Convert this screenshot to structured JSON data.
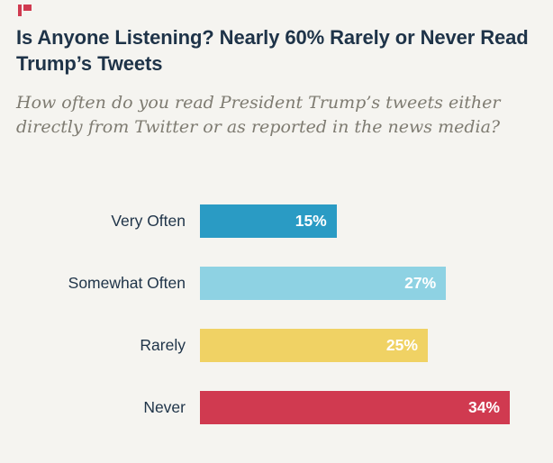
{
  "page": {
    "background": "#f5f4f0",
    "text_color": "#1e3348"
  },
  "logo": {
    "color": "#d03a50"
  },
  "header": {
    "title": "Is Anyone Listening? Nearly 60% Rarely or Never Read Trump’s Tweets",
    "subtitle": "How often do you read President Trump’s tweets either directly from Twitter or as reported in the news media?"
  },
  "chart_data": {
    "type": "bar",
    "orientation": "horizontal",
    "title": "Is Anyone Listening? Nearly 60% Rarely or Never Read Trump’s Tweets",
    "subtitle": "How often do you read President Trump’s tweets either directly from Twitter or as reported in the news media?",
    "categories": [
      "Very Often",
      "Somewhat Often",
      "Rarely",
      "Never"
    ],
    "values": [
      15,
      27,
      25,
      34
    ],
    "value_labels": [
      "15%",
      "27%",
      "25%",
      "34%"
    ],
    "bar_colors": [
      "#2a9bc4",
      "#8ed2e3",
      "#f0d264",
      "#d03a50"
    ],
    "value_label_color": "#ffffff",
    "category_label_color": "#1e3348",
    "xlim": [
      0,
      34
    ],
    "grid": false,
    "legend": "none"
  }
}
